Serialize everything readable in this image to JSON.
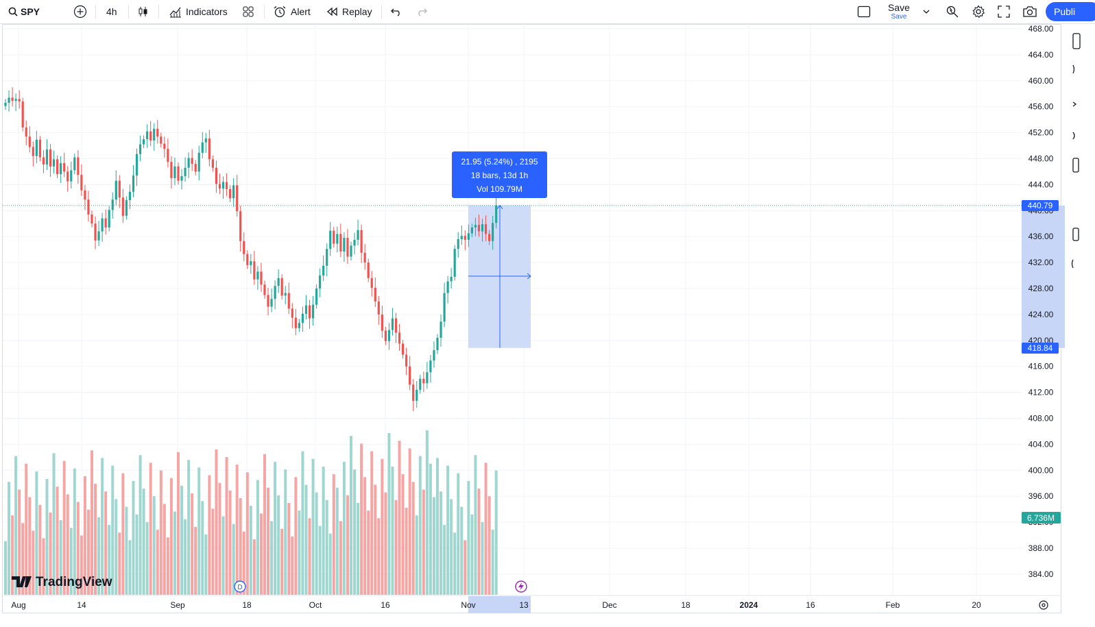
{
  "toolbar": {
    "symbol": "SPY",
    "interval": "4h",
    "indicators_label": "Indicators",
    "alert_label": "Alert",
    "replay_label": "Replay",
    "save_label": "Save",
    "save_sub_label": "Save",
    "publish_label": "Publi"
  },
  "chart": {
    "watermark": "TradingView",
    "current_price": "440.79",
    "measure_low_price": "418.84",
    "volume_label": "6.736M",
    "measure_tooltip": {
      "line1": "21.95 (5.24%) , 2195",
      "line2": "18 bars, 13d 1h",
      "line3": "Vol 109.79M"
    },
    "dividend_marker": "D",
    "colors": {
      "up": "#26a69a",
      "down": "#ef5350",
      "vol_up": "#9fd6cf",
      "vol_down": "#f5a5a3",
      "accent": "#2962ff",
      "measure_fill": "#c7d6f7"
    }
  },
  "chart_data": {
    "type": "candlestick",
    "symbol": "SPY",
    "interval": "4h",
    "y_axis": {
      "ticks": [
        "468.00",
        "464.00",
        "460.00",
        "456.00",
        "452.00",
        "448.00",
        "444.00",
        "440.00",
        "436.00",
        "432.00",
        "428.00",
        "424.00",
        "420.00",
        "416.00",
        "412.00",
        "408.00",
        "404.00",
        "400.00",
        "396.00",
        "392.00",
        "388.00",
        "384.00"
      ],
      "range": [
        382,
        468.5
      ]
    },
    "x_axis": {
      "ticks": [
        "Aug",
        "14",
        "Sep",
        "18",
        "Oct",
        "16",
        "Nov",
        "13",
        "Dec",
        "18",
        "2024",
        "16",
        "Feb",
        "20"
      ],
      "highlighted": "13"
    },
    "last_price": 440.79,
    "measure": {
      "from": 418.84,
      "to": 440.79,
      "change": 21.95,
      "percent": 5.24,
      "ticks": 2195,
      "bars": 18,
      "duration": "13d 1h",
      "volume": "109.79M"
    },
    "ohlc_close_trail": [
      456.6,
      457.4,
      456.9,
      457.2,
      456.8,
      452.8,
      451.4,
      449.8,
      448.4,
      450.9,
      448.2,
      447.1,
      449.4,
      446.8,
      447.9,
      445.6,
      447.3,
      446.0,
      444.5,
      446.2,
      448.2,
      445.5,
      443.1,
      441.7,
      439.4,
      438.0,
      435.4,
      436.8,
      438.8,
      437.4,
      440.1,
      441.7,
      444.6,
      442.0,
      439.2,
      441.6,
      442.9,
      445.4,
      448.7,
      450.2,
      451.0,
      452.2,
      450.8,
      452.6,
      451.4,
      450.3,
      449.5,
      447.5,
      445.0,
      446.8,
      444.6,
      445.3,
      446.6,
      448.1,
      447.2,
      446.0,
      448.9,
      450.5,
      451.1,
      447.9,
      446.6,
      444.1,
      443.4,
      444.4,
      443.3,
      441.9,
      443.9,
      439.9,
      435.3,
      433.3,
      431.6,
      432.2,
      429.4,
      430.6,
      428.6,
      427.0,
      425.2,
      426.4,
      428.4,
      429.6,
      426.9,
      427.3,
      424.9,
      423.5,
      421.9,
      422.7,
      424.1,
      425.4,
      423.4,
      425.5,
      428.0,
      430.0,
      431.5,
      434.1,
      436.9,
      434.9,
      436.4,
      433.7,
      435.8,
      432.9,
      434.6,
      435.5,
      437.0,
      433.5,
      432.0,
      429.6,
      428.1,
      426.0,
      424.0,
      421.5,
      419.9,
      421.6,
      423.4,
      421.2,
      419.5,
      417.8,
      416.0,
      413.2,
      410.7,
      412.4,
      414.1,
      413.4,
      415.1,
      416.9,
      418.5,
      420.4,
      422.9,
      427.3,
      429.1,
      429.8,
      434.1,
      435.6,
      436.1,
      435.5,
      436.5,
      437.4,
      437.8,
      436.8,
      437.9,
      436.4,
      435.3,
      438.1,
      440.79
    ],
    "volume_range": [
      0,
      11
    ]
  }
}
